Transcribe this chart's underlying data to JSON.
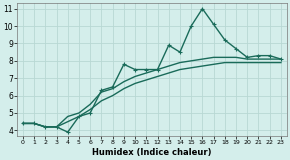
{
  "xlabel": "Humidex (Indice chaleur)",
  "bg_color": "#d4eeeb",
  "grid_color": "#b8d8d4",
  "line_color": "#1a6b5a",
  "xlim": [
    -0.5,
    23.5
  ],
  "ylim": [
    3.7,
    11.3
  ],
  "xticks": [
    0,
    1,
    2,
    3,
    4,
    5,
    6,
    7,
    8,
    9,
    10,
    11,
    12,
    13,
    14,
    15,
    16,
    17,
    18,
    19,
    20,
    21,
    22,
    23
  ],
  "yticks": [
    4,
    5,
    6,
    7,
    8,
    9,
    10,
    11
  ],
  "series": [
    {
      "x": [
        0,
        1,
        2,
        3,
        4,
        5,
        6,
        7,
        8,
        9,
        10,
        11,
        12,
        13,
        14,
        15,
        16,
        17,
        18,
        19,
        20,
        21,
        22,
        23
      ],
      "y": [
        4.4,
        4.4,
        4.2,
        4.2,
        3.9,
        4.8,
        5.0,
        6.3,
        6.5,
        7.8,
        7.5,
        7.5,
        7.5,
        8.9,
        8.5,
        10.0,
        11.0,
        10.1,
        9.2,
        8.7,
        8.2,
        8.3,
        8.3,
        8.1
      ],
      "marker": true,
      "linewidth": 1.0
    },
    {
      "x": [
        0,
        1,
        2,
        3,
        4,
        5,
        6,
        7,
        8,
        9,
        10,
        11,
        12,
        13,
        14,
        15,
        16,
        17,
        18,
        19,
        20,
        21,
        22,
        23
      ],
      "y": [
        4.4,
        4.4,
        4.2,
        4.2,
        4.8,
        5.0,
        5.5,
        6.2,
        6.4,
        6.8,
        7.1,
        7.3,
        7.5,
        7.7,
        7.9,
        8.0,
        8.1,
        8.2,
        8.2,
        8.2,
        8.1,
        8.1,
        8.1,
        8.1
      ],
      "marker": false,
      "linewidth": 1.0
    },
    {
      "x": [
        0,
        1,
        2,
        3,
        4,
        5,
        6,
        7,
        8,
        9,
        10,
        11,
        12,
        13,
        14,
        15,
        16,
        17,
        18,
        19,
        20,
        21,
        22,
        23
      ],
      "y": [
        4.4,
        4.4,
        4.2,
        4.2,
        4.5,
        4.8,
        5.2,
        5.7,
        6.0,
        6.4,
        6.7,
        6.9,
        7.1,
        7.3,
        7.5,
        7.6,
        7.7,
        7.8,
        7.9,
        7.9,
        7.9,
        7.9,
        7.9,
        7.9
      ],
      "marker": false,
      "linewidth": 1.0
    }
  ]
}
